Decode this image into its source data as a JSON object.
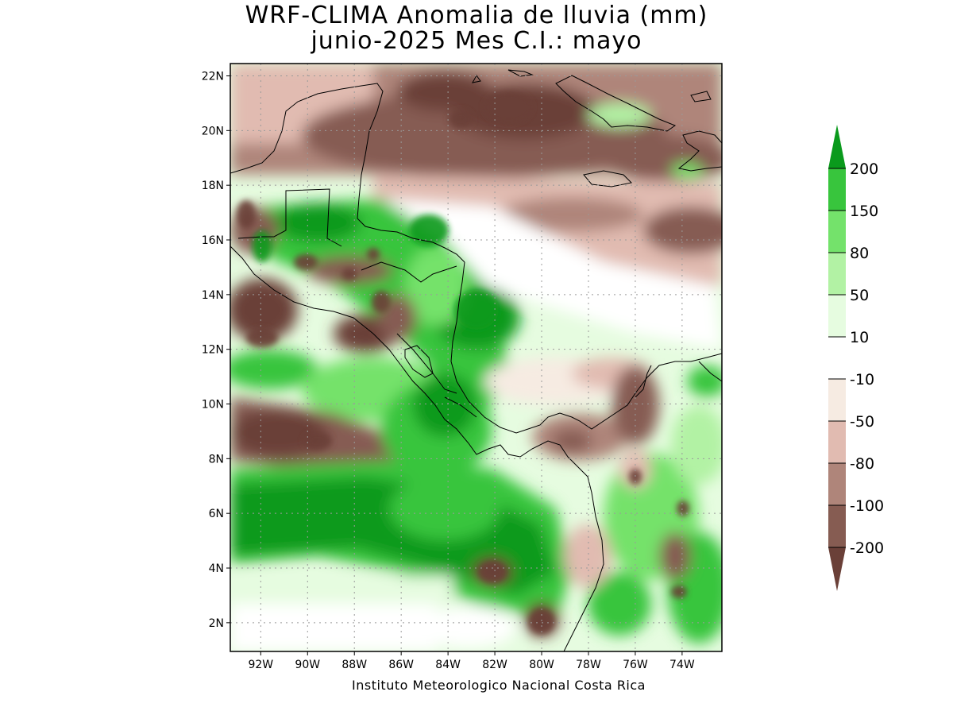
{
  "title": {
    "line1": "WRF-CLIMA Anomalia de lluvia (mm)",
    "line2": "junio-2025 Mes C.I.: mayo"
  },
  "credit": "Instituto Meteorologico Nacional Costa Rica",
  "axes": {
    "lat_ticks": [
      "22N",
      "20N",
      "18N",
      "16N",
      "14N",
      "12N",
      "10N",
      "8N",
      "6N",
      "4N",
      "2N"
    ],
    "lat_values": [
      22,
      20,
      18,
      16,
      14,
      12,
      10,
      8,
      6,
      4,
      2
    ],
    "lon_ticks": [
      "92W",
      "90W",
      "88W",
      "86W",
      "84W",
      "82W",
      "80W",
      "78W",
      "76W",
      "74W"
    ],
    "lon_values": [
      -92,
      -90,
      -88,
      -86,
      -84,
      -82,
      -80,
      -78,
      -76,
      -74
    ],
    "lat_range": [
      0.95,
      22.45
    ],
    "lon_range": [
      -93.3,
      -72.3
    ],
    "grid": "dotted"
  },
  "colorbar": {
    "labels": [
      "200",
      "150",
      "80",
      "50",
      "10",
      "-10",
      "-50",
      "-80",
      "-100",
      "-200"
    ],
    "levels": [
      200,
      150,
      80,
      50,
      10,
      -10,
      -50,
      -80,
      -100,
      -200
    ],
    "colors": [
      "#0a9a1c",
      "#38c53d",
      "#74e26b",
      "#b2f2a4",
      "#e6fce0",
      "#ffffff",
      "#f6ebe2",
      "#e1bbb1",
      "#af857a",
      "#865c52",
      "#6a4038"
    ]
  },
  "colors": {
    "dry_strong": "#6a4038",
    "dry": "#865c52",
    "dry_mid": "#af857a",
    "dry_light": "#e1bbb1",
    "dry_faint": "#f6ebe2",
    "neutral": "#ffffff",
    "wet_faint": "#e6fce0",
    "wet_light": "#b2f2a4",
    "wet_mid": "#74e26b",
    "wet": "#38c53d",
    "wet_strong": "#0a9a1c"
  }
}
